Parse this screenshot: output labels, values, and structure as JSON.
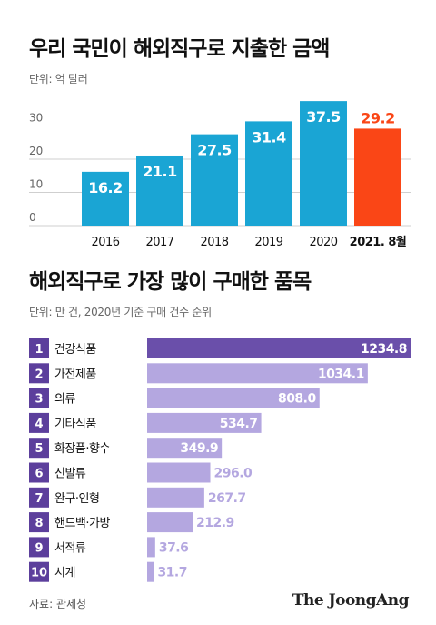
{
  "chart_data": [
    {
      "type": "bar",
      "title": "우리 국민이 해외직구로 지출한 금액",
      "unit_label": "단위: 억 달러",
      "categories": [
        "2016",
        "2017",
        "2018",
        "2019",
        "2020",
        "2021. 8월"
      ],
      "values": [
        16.2,
        21.1,
        27.5,
        31.4,
        37.5,
        29.2
      ],
      "value_labels": [
        "16.2",
        "21.1",
        "27.5",
        "31.4",
        "37.5",
        "29.2"
      ],
      "ylim": [
        0,
        40
      ],
      "yticks": [
        "0",
        "10",
        "20",
        "30"
      ],
      "grid": true,
      "colors": {
        "bar": "#1aa5d4",
        "highlight_bar": "#fa4616",
        "highlight_label": "#fa4616"
      },
      "highlight_index": 5
    },
    {
      "type": "bar",
      "orientation": "horizontal",
      "title": "해외직구로 가장 많이 구매한 품목",
      "unit_label": "단위: 만 건, 2020년 기준 구매 건수 순위",
      "ranks": [
        "1",
        "2",
        "3",
        "4",
        "5",
        "6",
        "7",
        "8",
        "9",
        "10"
      ],
      "categories": [
        "건강식품",
        "가전제품",
        "의류",
        "기타식품",
        "화장품·향수",
        "신발류",
        "완구·인형",
        "핸드백·가방",
        "서적류",
        "시계"
      ],
      "values": [
        1234.8,
        1034.1,
        808.0,
        534.7,
        349.9,
        296.0,
        267.7,
        212.9,
        37.6,
        31.7
      ],
      "value_labels": [
        "1234.8",
        "1034.1",
        "808.0",
        "534.7",
        "349.9",
        "296.0",
        "267.7",
        "212.9",
        "37.6",
        "31.7"
      ],
      "colors": {
        "bar": "#b4a7e0",
        "top_bar": "#6a4faa",
        "rank_box": "#5c3f9c",
        "label_inside": "#ffffff",
        "label_outside": "#b4a7e0"
      }
    }
  ],
  "footer": {
    "source": "자료: 관세청",
    "brand": "The JoongAng"
  }
}
